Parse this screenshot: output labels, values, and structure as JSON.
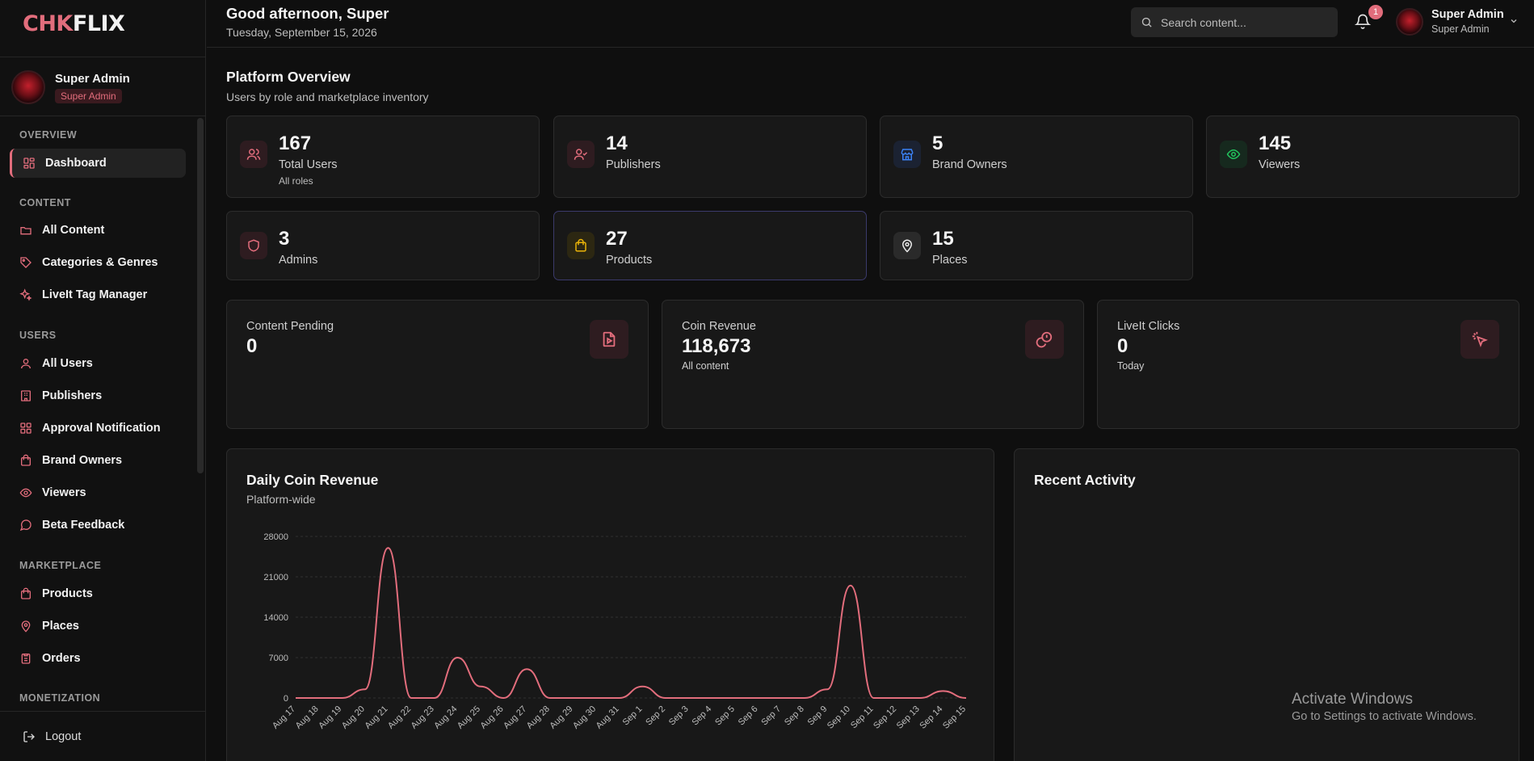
{
  "brand": {
    "part1": "CHK",
    "part2": "FLIX"
  },
  "sidebar": {
    "profile": {
      "name": "Super Admin",
      "role": "Super Admin"
    },
    "sections": {
      "overview": "OVERVIEW",
      "content": "CONTENT",
      "users": "USERS",
      "marketplace": "MARKETPLACE",
      "monetization": "MONETIZATION"
    },
    "items": {
      "dashboard": "Dashboard",
      "all_content": "All Content",
      "categories": "Categories & Genres",
      "liveit_tag": "LiveIt Tag Manager",
      "all_users": "All Users",
      "publishers": "Publishers",
      "approval": "Approval Notification",
      "brand_owners": "Brand Owners",
      "viewers": "Viewers",
      "beta_feedback": "Beta Feedback",
      "products": "Products",
      "places": "Places",
      "orders": "Orders"
    },
    "logout": "Logout"
  },
  "header": {
    "greeting": "Good afternoon, Super",
    "date": "Tuesday, September 15, 2026",
    "search_placeholder": "Search content...",
    "notification_count": "1",
    "user_name": "Super Admin",
    "user_role": "Super Admin"
  },
  "overview": {
    "title": "Platform Overview",
    "subtitle": "Users by role and marketplace inventory"
  },
  "stats": {
    "total_users": {
      "value": "167",
      "label": "Total Users",
      "extra": "All roles"
    },
    "publishers": {
      "value": "14",
      "label": "Publishers"
    },
    "brand_owners": {
      "value": "5",
      "label": "Brand Owners"
    },
    "viewers": {
      "value": "145",
      "label": "Viewers"
    },
    "admins": {
      "value": "3",
      "label": "Admins"
    },
    "products": {
      "value": "27",
      "label": "Products"
    },
    "places": {
      "value": "15",
      "label": "Places"
    }
  },
  "metrics": {
    "content_pending": {
      "label": "Content Pending",
      "value": "0"
    },
    "coin_revenue": {
      "label": "Coin Revenue",
      "value": "118,673",
      "extra": "All content"
    },
    "liveit_clicks": {
      "label": "LiveIt Clicks",
      "value": "0",
      "extra": "Today"
    }
  },
  "chart": {
    "title": "Daily Coin Revenue",
    "subtitle": "Platform-wide"
  },
  "activity": {
    "title": "Recent Activity"
  },
  "watermark": {
    "line1": "Activate Windows",
    "line2": "Go to Settings to activate Windows."
  },
  "colors": {
    "accent": "#e26d7c",
    "blue": "#3b82f6",
    "green": "#22c55e",
    "yellow": "#eab308"
  },
  "chart_data": {
    "type": "line",
    "title": "Daily Coin Revenue",
    "subtitle": "Platform-wide",
    "categories": [
      "Aug 17",
      "Aug 18",
      "Aug 19",
      "Aug 20",
      "Aug 21",
      "Aug 22",
      "Aug 23",
      "Aug 24",
      "Aug 25",
      "Aug 26",
      "Aug 27",
      "Aug 28",
      "Aug 29",
      "Aug 30",
      "Aug 31",
      "Sep 1",
      "Sep 2",
      "Sep 3",
      "Sep 4",
      "Sep 5",
      "Sep 6",
      "Sep 7",
      "Sep 8",
      "Sep 9",
      "Sep 10",
      "Sep 11",
      "Sep 12",
      "Sep 13",
      "Sep 14",
      "Sep 15"
    ],
    "values": [
      0,
      0,
      0,
      1500,
      26000,
      0,
      0,
      7000,
      2000,
      0,
      5000,
      0,
      0,
      0,
      0,
      2000,
      0,
      0,
      0,
      0,
      0,
      0,
      0,
      1500,
      19500,
      0,
      0,
      0,
      1200,
      0
    ],
    "yticks": [
      0,
      7000,
      14000,
      21000,
      28000
    ],
    "ylim": [
      0,
      28000
    ],
    "grid": true,
    "color": "#e26d7c"
  }
}
